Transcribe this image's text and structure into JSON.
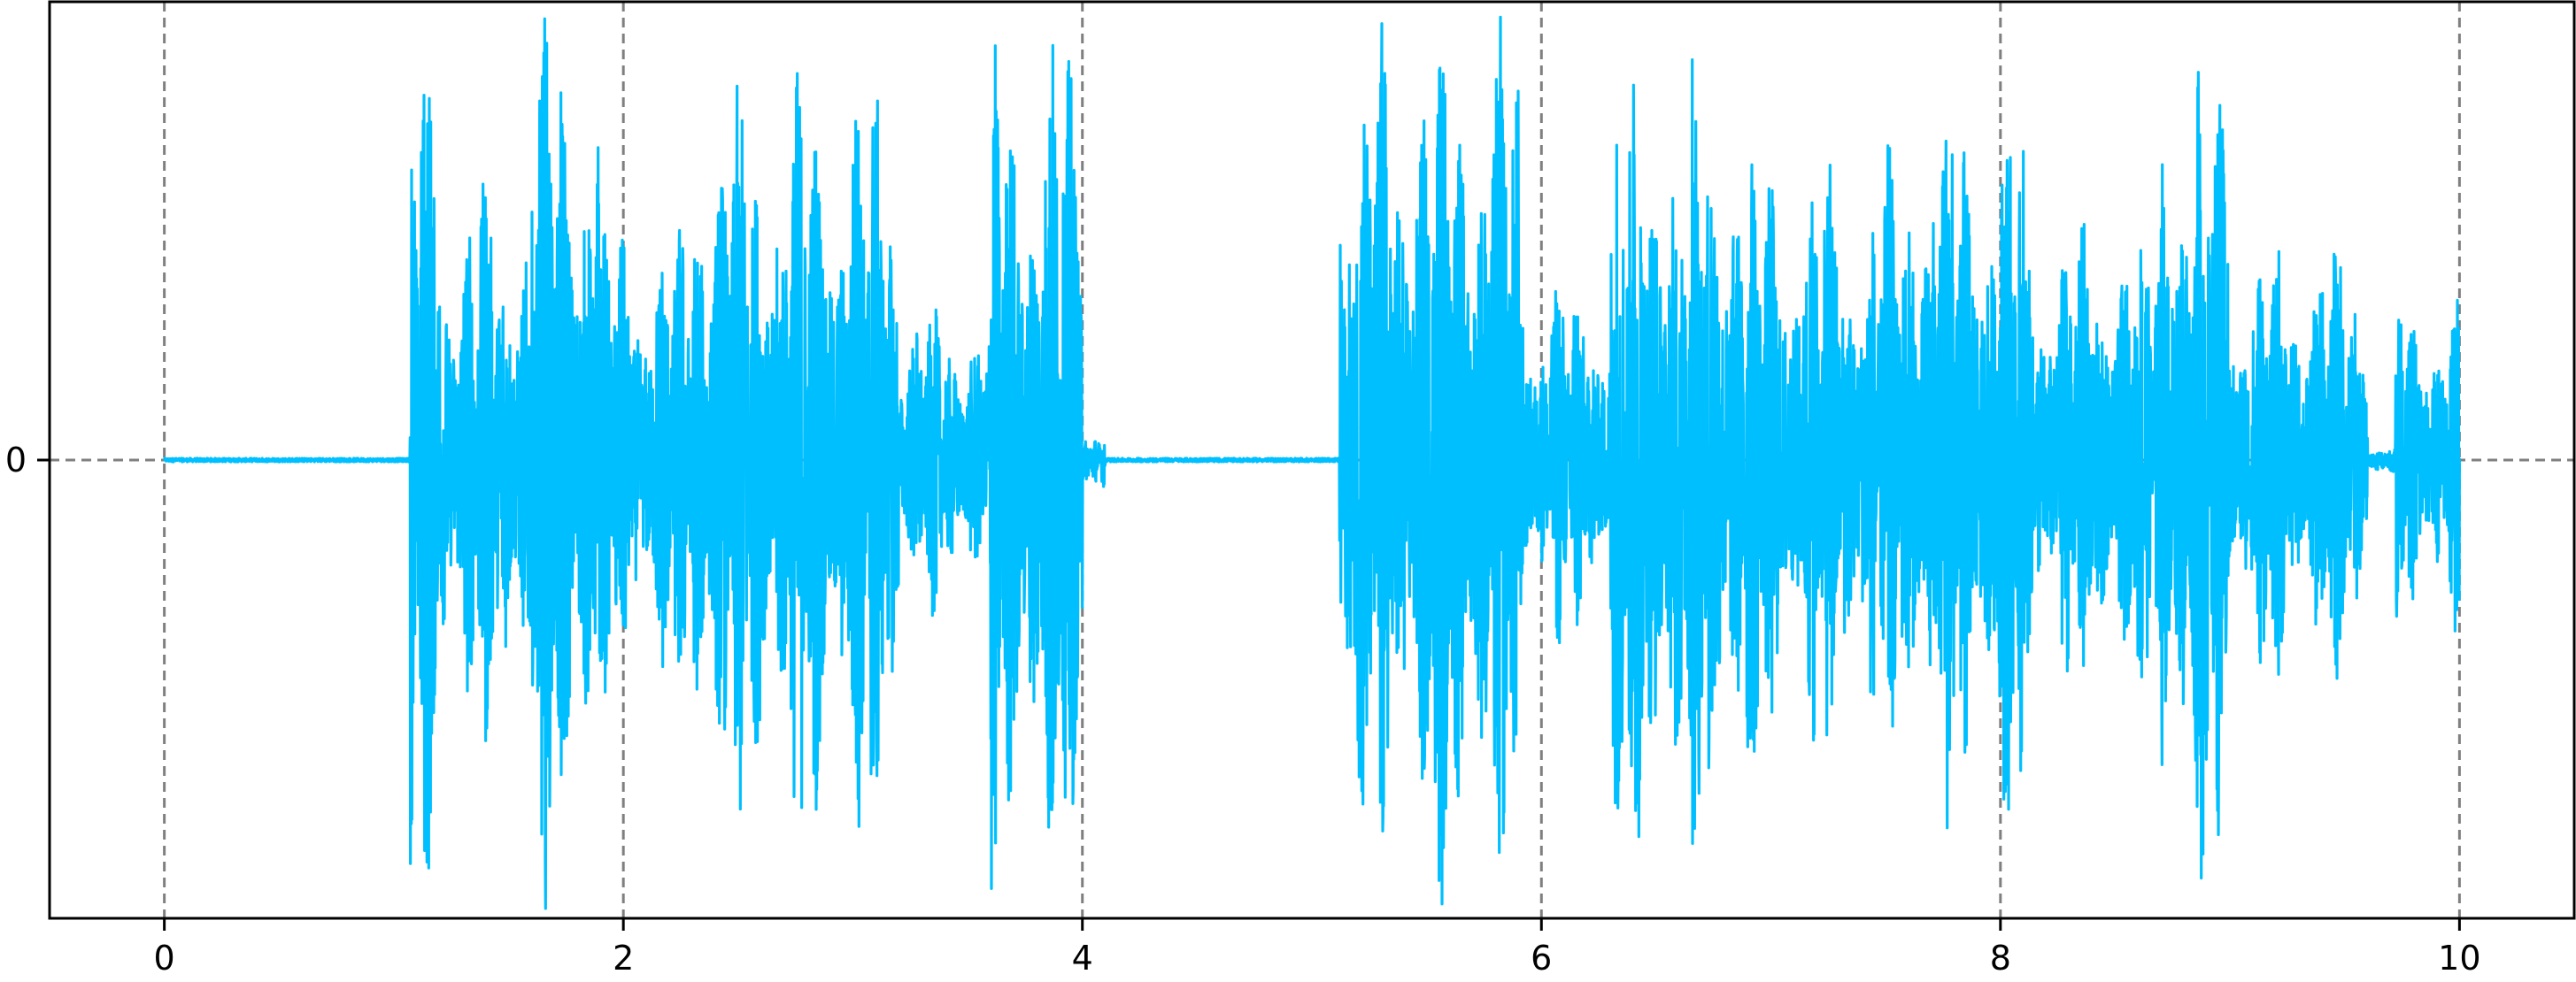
{
  "chart_data": {
    "type": "line",
    "title": "",
    "xlabel": "",
    "ylabel": "",
    "xlim": [
      -0.5,
      10.5
    ],
    "ylim": [
      -1,
      1
    ],
    "grid": {
      "x_dashed_lines_at": [
        0,
        2,
        4,
        6,
        8,
        10
      ],
      "y_dashed_lines_at": [
        0
      ],
      "color": "#7f7f7f"
    },
    "x_ticks": [
      {
        "value": 0,
        "label": "0"
      },
      {
        "value": 2,
        "label": "2"
      },
      {
        "value": 4,
        "label": "4"
      },
      {
        "value": 6,
        "label": "6"
      },
      {
        "value": 8,
        "label": "8"
      },
      {
        "value": 10,
        "label": "10"
      }
    ],
    "y_ticks": [
      {
        "value": 0,
        "label": "0"
      }
    ],
    "series": [
      {
        "color": "#00bfff",
        "x_range": [
          0,
          10
        ],
        "description_segments": [
          {
            "x_start": 0.0,
            "x_end": 1.07,
            "amplitude": 0.0
          },
          {
            "x_start": 1.07,
            "x_end": 1.2,
            "amplitude": 1.0
          },
          {
            "x_start": 1.2,
            "x_end": 1.6,
            "amplitude": 0.65
          },
          {
            "x_start": 1.6,
            "x_end": 1.9,
            "amplitude": 1.0
          },
          {
            "x_start": 1.9,
            "x_end": 2.3,
            "amplitude": 0.55
          },
          {
            "x_start": 2.3,
            "x_end": 2.7,
            "amplitude": 0.85
          },
          {
            "x_start": 2.7,
            "x_end": 3.2,
            "amplitude": 0.9
          },
          {
            "x_start": 3.2,
            "x_end": 3.6,
            "amplitude": 0.35
          },
          {
            "x_start": 3.6,
            "x_end": 4.0,
            "amplitude": 1.0
          },
          {
            "x_start": 4.0,
            "x_end": 4.1,
            "amplitude": 0.1
          },
          {
            "x_start": 4.1,
            "x_end": 5.12,
            "amplitude": 0.0
          },
          {
            "x_start": 5.12,
            "x_end": 5.9,
            "amplitude": 1.0
          },
          {
            "x_start": 5.9,
            "x_end": 6.3,
            "amplitude": 0.45
          },
          {
            "x_start": 6.3,
            "x_end": 6.9,
            "amplitude": 0.95
          },
          {
            "x_start": 6.9,
            "x_end": 7.6,
            "amplitude": 0.7
          },
          {
            "x_start": 7.6,
            "x_end": 8.1,
            "amplitude": 0.85
          },
          {
            "x_start": 8.1,
            "x_end": 8.7,
            "amplitude": 0.55
          },
          {
            "x_start": 8.7,
            "x_end": 9.0,
            "amplitude": 0.95
          },
          {
            "x_start": 9.0,
            "x_end": 9.6,
            "amplitude": 0.5
          },
          {
            "x_start": 9.6,
            "x_end": 9.72,
            "amplitude": 0.03
          },
          {
            "x_start": 9.72,
            "x_end": 10.0,
            "amplitude": 0.4
          }
        ]
      }
    ]
  }
}
